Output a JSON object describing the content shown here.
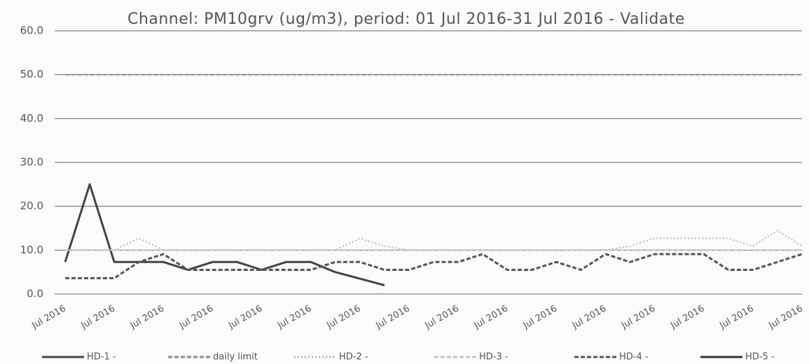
{
  "chart_data": {
    "type": "line",
    "title": "Channel: PM10grv (ug/m3), period: 01 Jul 2016-31 Jul 2016 - Validate",
    "categories": [
      "Jul 2016",
      null,
      "Jul 2016",
      null,
      "Jul 2016",
      null,
      "Jul 2016",
      null,
      "Jul 2016",
      null,
      "Jul 2016",
      null,
      "Jul 2016",
      null,
      "Jul 2016",
      null,
      "Jul 2016",
      null,
      "Jul 2016",
      null,
      "Jul 2016",
      null,
      "Jul 2016",
      null,
      "Jul 2016",
      null,
      "Jul 2016",
      null,
      "Jul 2016",
      null,
      "Jul 2016"
    ],
    "series": [
      {
        "name": "HD-1 -",
        "color": "#444444",
        "dash": "solid",
        "values": [
          7.3,
          25,
          7.3,
          7.3,
          7.3,
          5.5,
          7.3,
          7.3,
          5.5,
          7.3,
          7.3,
          5.0,
          3.5,
          2.0,
          null,
          null,
          null,
          null,
          null,
          null,
          null,
          null,
          null,
          null,
          null,
          null,
          null,
          null,
          null,
          null,
          null
        ]
      },
      {
        "name": "daily limit",
        "color": "#8a8a8a",
        "dash": "dashed",
        "values": [
          50,
          50,
          50,
          50,
          50,
          50,
          50,
          50,
          50,
          50,
          50,
          50,
          50,
          50,
          50,
          50,
          50,
          50,
          50,
          50,
          50,
          50,
          50,
          50,
          50,
          50,
          50,
          50,
          50,
          50,
          50
        ]
      },
      {
        "name": "HD-2 -",
        "color": "#b8b8b8",
        "dash": "dotted",
        "values": [
          10,
          10,
          10,
          12.7,
          10,
          10,
          10,
          10,
          10,
          10,
          10,
          10,
          12.7,
          10.9,
          10,
          10,
          10,
          10,
          10,
          10,
          10,
          10,
          10,
          10.9,
          12.7,
          12.7,
          12.7,
          12.7,
          10.9,
          14.5,
          10.9
        ]
      },
      {
        "name": "HD-3 -",
        "color": "#c4c4c4",
        "dash": "dashed",
        "values": [
          10,
          10,
          10,
          10,
          10,
          10,
          10,
          10,
          10,
          10,
          10,
          10,
          10,
          10,
          10,
          10,
          10,
          10,
          10,
          10,
          10,
          10,
          10,
          10,
          10,
          10,
          10,
          10,
          10,
          10,
          10
        ]
      },
      {
        "name": "HD-4 -",
        "color": "#555555",
        "dash": "dashed",
        "values": [
          3.6,
          3.6,
          3.6,
          7.3,
          9.1,
          5.5,
          5.5,
          5.5,
          5.5,
          5.5,
          5.5,
          7.3,
          7.3,
          5.5,
          5.5,
          7.3,
          7.3,
          9.1,
          5.5,
          5.5,
          7.3,
          5.5,
          9.1,
          7.3,
          9.1,
          9.1,
          9.1,
          5.5,
          5.5,
          7.3,
          9.1
        ]
      },
      {
        "name": "HD-5 -",
        "color": "#333333",
        "dash": "solid",
        "values": [
          null,
          null,
          null,
          null,
          null,
          null,
          null,
          null,
          null,
          null,
          null,
          null,
          null,
          null,
          null,
          null,
          null,
          null,
          null,
          null,
          null,
          null,
          null,
          null,
          null,
          null,
          null,
          null,
          null,
          null,
          null
        ]
      }
    ],
    "ylim": [
      0,
      60
    ],
    "yticks": [
      {
        "value": 0,
        "label": "0.0"
      },
      {
        "value": 10,
        "label": "10.0"
      },
      {
        "value": 20,
        "label": "20.0"
      },
      {
        "value": 30,
        "label": "30.0"
      },
      {
        "value": 40,
        "label": "40.0"
      },
      {
        "value": 50,
        "label": "50.0"
      },
      {
        "value": 60,
        "label": "60.0"
      }
    ],
    "grid": true,
    "legend": "bottom"
  }
}
